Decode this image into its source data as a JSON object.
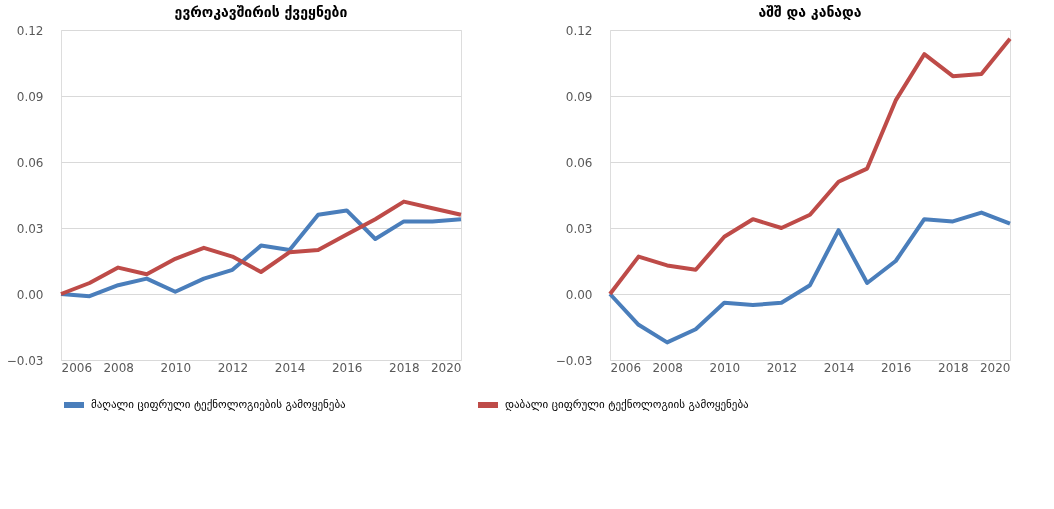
{
  "chart_data": [
    {
      "type": "line",
      "title": "ევროკავშირის ქვეყნები",
      "x": [
        2006,
        2007,
        2008,
        2009,
        2010,
        2011,
        2012,
        2013,
        2014,
        2015,
        2016,
        2017,
        2018,
        2019,
        2020
      ],
      "series": [
        {
          "name": "მაღალი ციფრული ტექნოლოგიების გამოყენება",
          "color": "#4a7ebb",
          "values": [
            0.0,
            -0.001,
            0.004,
            0.007,
            0.001,
            0.007,
            0.011,
            0.022,
            0.02,
            0.036,
            0.038,
            0.025,
            0.033,
            0.033,
            0.034
          ]
        },
        {
          "name": "დაბალი ციფრული ტექნოლოგიის გამოყენება",
          "color": "#be4b48",
          "values": [
            0.0,
            0.005,
            0.012,
            0.009,
            0.016,
            0.021,
            0.017,
            0.01,
            0.019,
            0.02,
            0.027,
            0.034,
            0.042,
            0.039,
            0.036
          ]
        }
      ],
      "xlim": [
        2006,
        2020
      ],
      "xticks": [
        2006,
        2008,
        2010,
        2012,
        2014,
        2016,
        2018,
        2020
      ],
      "ylim": [
        -0.03,
        0.12
      ],
      "yticks": [
        -0.03,
        {
          "value": 0,
          "label": "0.00"
        },
        0.03,
        0.06,
        0.09,
        0.12
      ],
      "grid": "y",
      "legend": "bottom",
      "marker": "none",
      "line_style": "solid"
    },
    {
      "type": "line",
      "title": "აშშ და კანადა",
      "x": [
        2006,
        2007,
        2008,
        2009,
        2010,
        2011,
        2012,
        2013,
        2014,
        2015,
        2016,
        2017,
        2018,
        2019,
        2020
      ],
      "series": [
        {
          "name": "მაღალი ციფრული ტექნოლოგიების გამოყენება",
          "color": "#4a7ebb",
          "values": [
            0.0,
            -0.014,
            -0.022,
            -0.016,
            -0.004,
            -0.005,
            -0.004,
            0.004,
            0.029,
            0.005,
            0.015,
            0.034,
            0.033,
            0.037,
            0.032
          ]
        },
        {
          "name": "დაბალი ციფრული ტექნოლოგიის გამოყენება",
          "color": "#be4b48",
          "values": [
            0.0,
            0.017,
            0.013,
            0.011,
            0.026,
            0.034,
            0.03,
            0.036,
            0.051,
            0.057,
            0.088,
            0.109,
            0.099,
            0.1,
            0.116
          ]
        }
      ],
      "xlim": [
        2006,
        2020
      ],
      "xticks": [
        2006,
        2008,
        2010,
        2012,
        2014,
        2016,
        2018,
        2020
      ],
      "ylim": [
        -0.03,
        0.12
      ],
      "yticks": [
        -0.03,
        {
          "value": 0,
          "label": "0.00"
        },
        0.03,
        0.06,
        0.09,
        0.12
      ],
      "grid": "y",
      "legend": "bottom",
      "marker": "none",
      "line_style": "solid"
    }
  ]
}
